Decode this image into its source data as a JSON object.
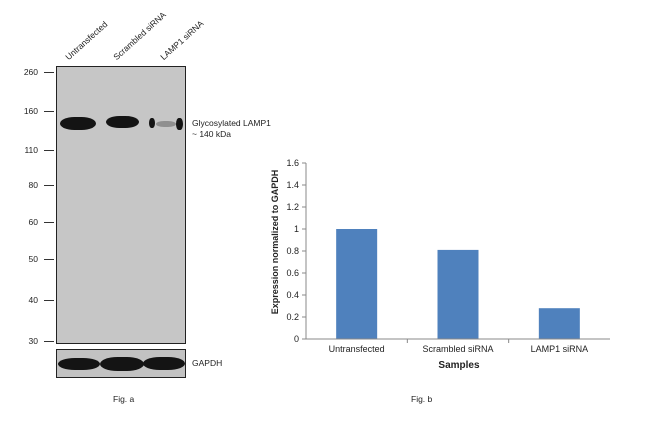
{
  "figure_a": {
    "lanes": [
      "Untransfected",
      "Scrambled siRNA",
      "LAMP1 siRNA"
    ],
    "mw_markers": [
      "260",
      "160",
      "110",
      "80",
      "60",
      "50",
      "40",
      "30"
    ],
    "band_annotation_line1": "Glycosylated LAMP1",
    "band_annotation_line2": "~ 140 kDa",
    "loading_control": "GAPDH",
    "caption": "Fig. a"
  },
  "figure_b": {
    "caption": "Fig. b"
  },
  "chart_data": {
    "type": "bar",
    "categories": [
      "Untransfected",
      "Scrambled siRNA",
      "LAMP1 siRNA"
    ],
    "values": [
      1.0,
      0.81,
      0.28
    ],
    "title": "",
    "xlabel": "Samples",
    "ylabel": "Expression normalized to GAPDH",
    "ylim": [
      0,
      1.6
    ],
    "yticks": [
      "0",
      "0.2",
      "0.4",
      "0.6",
      "0.8",
      "1",
      "1.2",
      "1.4",
      "1.6"
    ],
    "bar_color": "#4f81bd",
    "grid": false,
    "legend": "none"
  }
}
